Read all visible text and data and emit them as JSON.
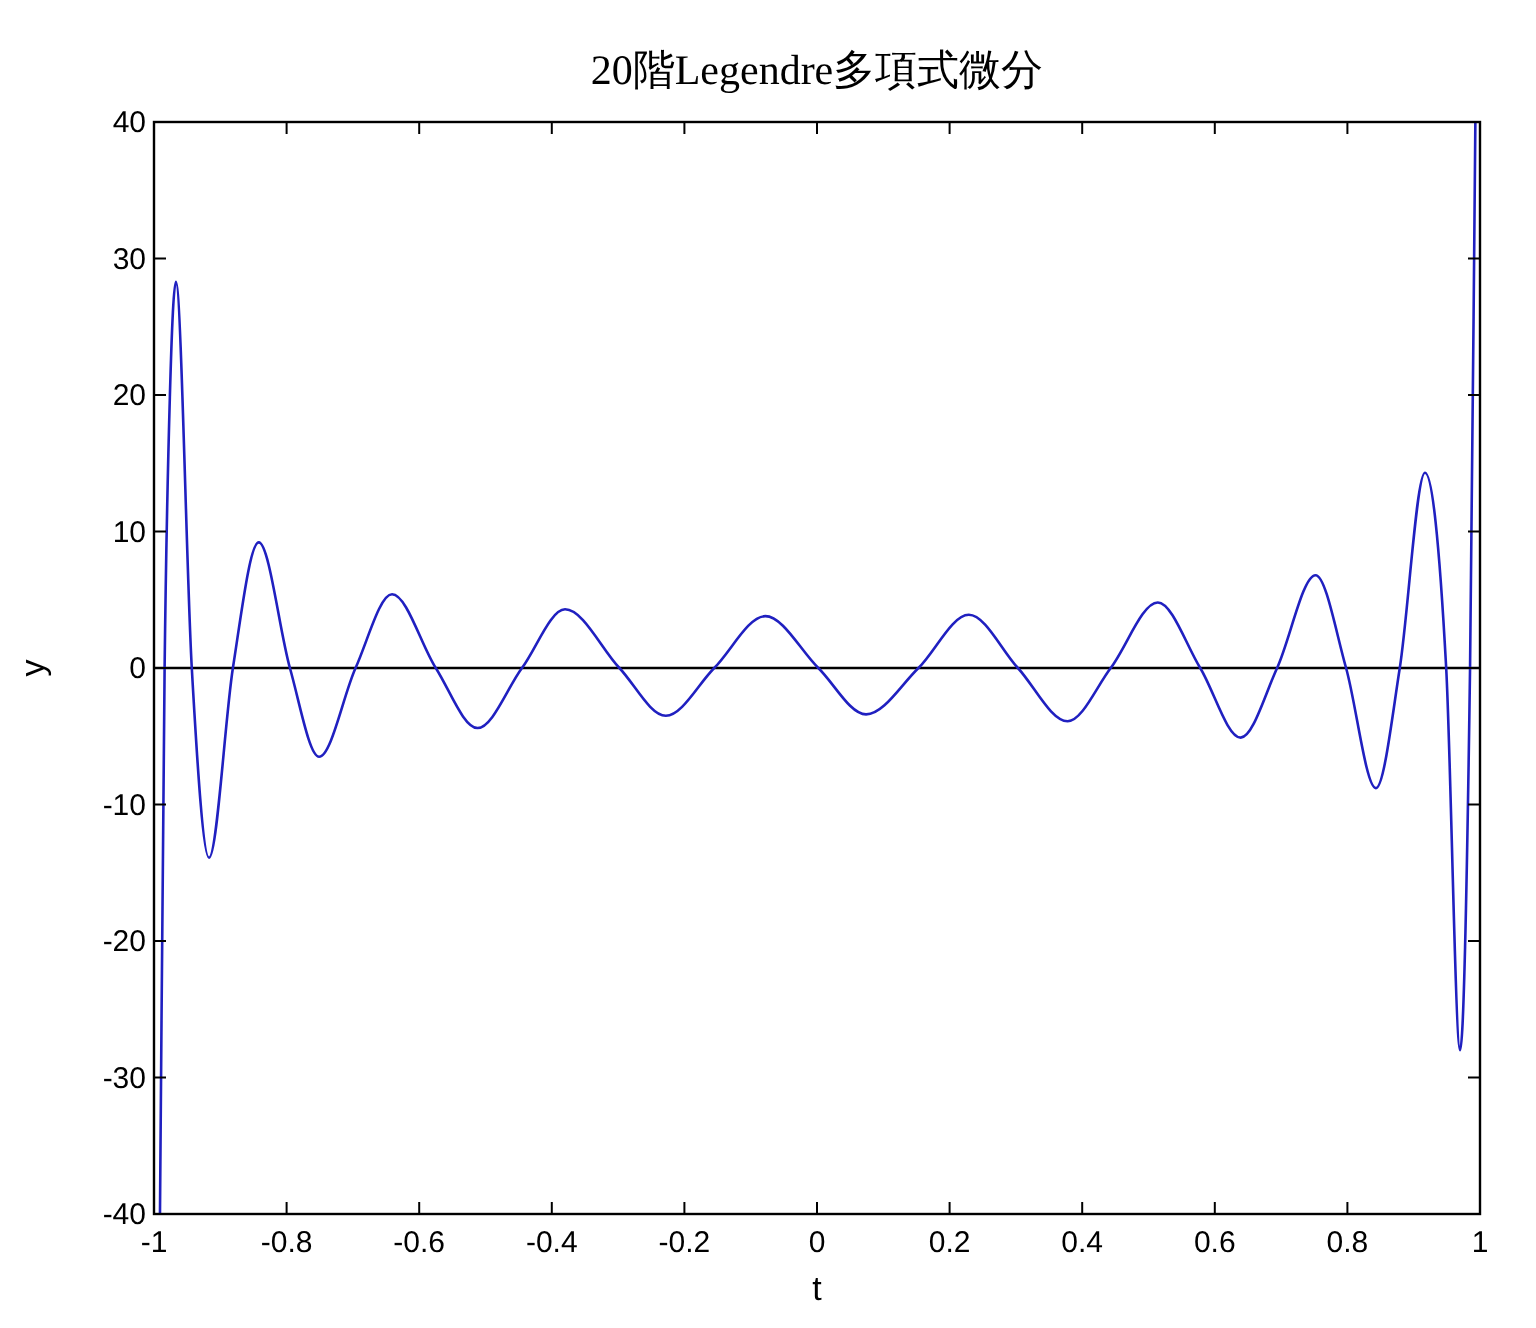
{
  "chart_data": {
    "type": "line",
    "title": "20階Legendre多項式微分",
    "xlabel": "t",
    "ylabel": "y",
    "x": [
      -0.991,
      -0.984,
      -0.976,
      -0.967,
      -0.943,
      -0.917,
      -0.881,
      -0.842,
      -0.795,
      -0.751,
      -0.696,
      -0.641,
      -0.575,
      -0.512,
      -0.445,
      -0.38,
      -0.298,
      -0.228,
      -0.155,
      -0.078,
      0.002,
      0.074,
      0.153,
      0.229,
      0.303,
      0.378,
      0.443,
      0.514,
      0.578,
      0.639,
      0.694,
      0.752,
      0.798,
      0.843,
      0.879,
      0.917,
      0.949,
      0.97,
      0.985,
      0.993
    ],
    "series": [
      {
        "color": "#2020c0",
        "values": [
          -40,
          0,
          20,
          28.3,
          0,
          -13.9,
          0,
          9.2,
          0,
          -6.5,
          0,
          5.4,
          0,
          -4.4,
          0,
          4.3,
          0,
          -3.5,
          0,
          3.8,
          0,
          -3.4,
          0,
          3.9,
          0,
          -3.9,
          0,
          4.8,
          0,
          -5.1,
          0,
          6.8,
          0,
          -8.8,
          0,
          14.3,
          0,
          -28,
          0,
          40
        ]
      }
    ],
    "ref_lines": [
      {
        "axis": "y",
        "value": 0,
        "color": "#000000"
      }
    ],
    "xlim": [
      -1,
      1
    ],
    "ylim": [
      -40,
      40
    ],
    "xticks": [
      -1,
      -0.8,
      -0.6,
      -0.4,
      -0.2,
      0,
      0.2,
      0.4,
      0.6,
      0.8,
      1
    ],
    "yticks": [
      -40,
      -30,
      -20,
      -10,
      0,
      10,
      20,
      30,
      40
    ]
  }
}
